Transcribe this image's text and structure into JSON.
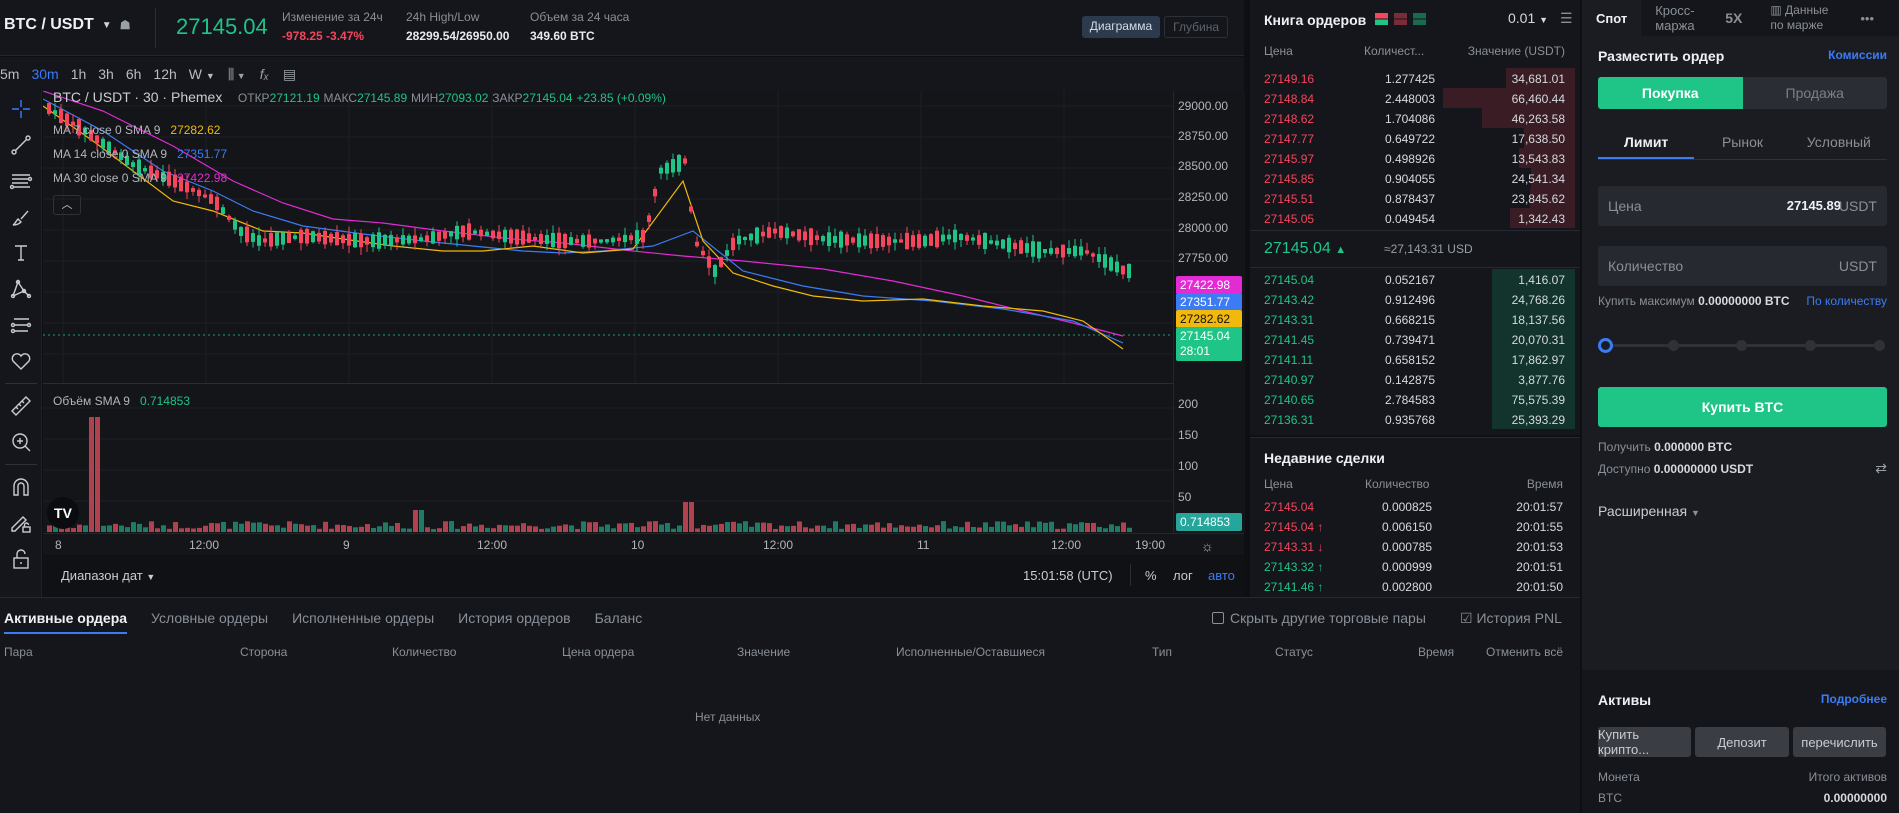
{
  "ticker": {
    "pair": "BTC / USDT",
    "last_price": "27145.04",
    "change_label": "Изменение за 24ч",
    "change_value": "-978.25 -3.47%",
    "highlow_label": "24h High/Low",
    "highlow_value": "28299.54/26950.00",
    "volume_label": "Объем за 24 часа",
    "volume_value": "349.60 BTC",
    "view_chart": "Диаграмма",
    "view_depth": "Глубина"
  },
  "toolbar": {
    "timeframes": [
      "5m",
      "30m",
      "1h",
      "3h",
      "6h",
      "12h",
      "W"
    ],
    "active_timeframe": "30m",
    "chart_type_icon": "candles-icon",
    "indicators_icon": "fx-icon",
    "template_icon": "list-icon"
  },
  "chart": {
    "title": "BTC / USDT · 30 · Phemex",
    "ohlc": {
      "open_label": "ОТКР",
      "open": "27121.19",
      "high_label": "МАКС",
      "high": "27145.89",
      "low_label": "МИН",
      "low": "27093.02",
      "close_label": "ЗАКР",
      "close": "27145.04",
      "change": "+23.85 (+0.09%)"
    },
    "ma": [
      {
        "label": "MA 7 close 0 SMA 9",
        "value": "27282.62",
        "color": "#f0b90b"
      },
      {
        "label": "MA 14 close 0 SMA 9",
        "value": "27351.77",
        "color": "#3b7cf5"
      },
      {
        "label": "MA 30 close 0 SMA 9",
        "value": "27422.98",
        "color": "#e32bd4"
      }
    ],
    "price_axis": [
      "29000.00",
      "28750.00",
      "28500.00",
      "28250.00",
      "28000.00",
      "27750.00"
    ],
    "price_tags": [
      {
        "value": "27422.98",
        "color": "#e32bd4"
      },
      {
        "value": "27351.77",
        "color": "#3b7cf5"
      },
      {
        "value": "27282.62",
        "color": "#f0b90b"
      },
      {
        "value": "27145.04",
        "color": "#1fc487",
        "countdown": "28:01"
      }
    ],
    "volume_label": "Объём SMA 9",
    "volume_value": "0.714853",
    "volume_axis": [
      "200",
      "150",
      "100",
      "50"
    ],
    "time_axis": [
      "8",
      "12:00",
      "9",
      "12:00",
      "10",
      "12:00",
      "11",
      "12:00",
      "19:00"
    ],
    "date_range": "Диапазон дат",
    "clock": "15:01:58 (UTC)",
    "percent": "%",
    "log": "лог",
    "auto": "авто"
  },
  "orderbook": {
    "title": "Книга ордеров",
    "step": "0.01",
    "headers": [
      "Цена",
      "Количест...",
      "Значение (USDT)"
    ],
    "asks": [
      {
        "price": "27149.16",
        "qty": "1.277425",
        "value": "34,681.01",
        "depth": 0.46
      },
      {
        "price": "27148.84",
        "qty": "2.448003",
        "value": "66,460.44",
        "depth": 0.88
      },
      {
        "price": "27148.62",
        "qty": "1.704086",
        "value": "46,263.58",
        "depth": 0.62
      },
      {
        "price": "27147.77",
        "qty": "0.649722",
        "value": "17,638.50",
        "depth": 0.34
      },
      {
        "price": "27145.97",
        "qty": "0.498926",
        "value": "13,543.83",
        "depth": 0.37
      },
      {
        "price": "27145.85",
        "qty": "0.904055",
        "value": "24,541.34",
        "depth": 0.29
      },
      {
        "price": "27145.51",
        "qty": "0.878437",
        "value": "23,845.62",
        "depth": 0.3
      },
      {
        "price": "27145.05",
        "qty": "0.049454",
        "value": "1,342.43",
        "depth": 0.43
      }
    ],
    "mid_price": "27145.04",
    "mid_usd": "≈27,143.31 USD",
    "bids": [
      {
        "price": "27145.04",
        "qty": "0.052167",
        "value": "1,416.07",
        "depth": 0.55
      },
      {
        "price": "27143.42",
        "qty": "0.912496",
        "value": "24,768.26",
        "depth": 0.55
      },
      {
        "price": "27143.31",
        "qty": "0.668215",
        "value": "18,137.56",
        "depth": 0.55
      },
      {
        "price": "27141.45",
        "qty": "0.739471",
        "value": "20,070.31",
        "depth": 0.55
      },
      {
        "price": "27141.11",
        "qty": "0.658152",
        "value": "17,862.97",
        "depth": 0.55
      },
      {
        "price": "27140.97",
        "qty": "0.142875",
        "value": "3,877.76",
        "depth": 0.55
      },
      {
        "price": "27140.65",
        "qty": "2.784583",
        "value": "75,575.39",
        "depth": 0.55
      },
      {
        "price": "27136.31",
        "qty": "0.935768",
        "value": "25,393.29",
        "depth": 0.55
      }
    ]
  },
  "trades": {
    "title": "Недавние сделки",
    "headers": [
      "Цена",
      "Количество",
      "Время"
    ],
    "rows": [
      {
        "price": "27145.04",
        "arrow": "",
        "side": "sell",
        "qty": "0.000825",
        "time": "20:01:57"
      },
      {
        "price": "27145.04",
        "arrow": "↑",
        "side": "sell",
        "qty": "0.006150",
        "time": "20:01:55"
      },
      {
        "price": "27143.31",
        "arrow": "↓",
        "side": "sell",
        "qty": "0.000785",
        "time": "20:01:53"
      },
      {
        "price": "27143.32",
        "arrow": "↑",
        "side": "buy",
        "qty": "0.000999",
        "time": "20:01:51"
      },
      {
        "price": "27141.46",
        "arrow": "↑",
        "side": "buy",
        "qty": "0.002800",
        "time": "20:01:50"
      }
    ]
  },
  "panel": {
    "tabs": [
      "Спот",
      "Кросс-маржа",
      "5X",
      "Данные по марже"
    ],
    "title": "Разместить ордер",
    "fees": "Комиссии",
    "buy": "Покупка",
    "sell": "Продажа",
    "order_types": [
      "Лимит",
      "Рынок",
      "Условный"
    ],
    "price_label": "Цена",
    "price_value": "27145.89",
    "price_unit": "USDT",
    "qty_label": "Количество",
    "qty_unit": "USDT",
    "max_buy_label": "Купить максимум",
    "max_buy_value": "0.00000000 BTC",
    "by_qty": "По количеству",
    "buy_button": "Купить BTC",
    "receive_label": "Получить",
    "receive_value": "0.000000 BTC",
    "available_label": "Доступно",
    "available_value": "0.00000000 USDT",
    "advanced": "Расширенная",
    "assets_title": "Активы",
    "assets_more": "Подробнее",
    "asset_buttons": [
      "Купить крипто...",
      "Депозит",
      "перечислить"
    ],
    "coin_header": "Монета",
    "total_header": "Итого активов",
    "coin": "BTC",
    "coin_total": "0.00000000"
  },
  "orders": {
    "tabs": [
      "Активные ордера",
      "Условные ордеры",
      "Исполненные ордеры",
      "История ордеров",
      "Баланс"
    ],
    "hide_pairs": "Скрыть другие торговые пары",
    "pnl_history": "История PNL",
    "headers": [
      "Пара",
      "Сторона",
      "Количество",
      "Цена ордера",
      "Значение",
      "Исполненные/Оставшиеся",
      "Тип",
      "Статус",
      "Время"
    ],
    "cancel_all": "Отменить всё",
    "empty": "Нет данных"
  }
}
